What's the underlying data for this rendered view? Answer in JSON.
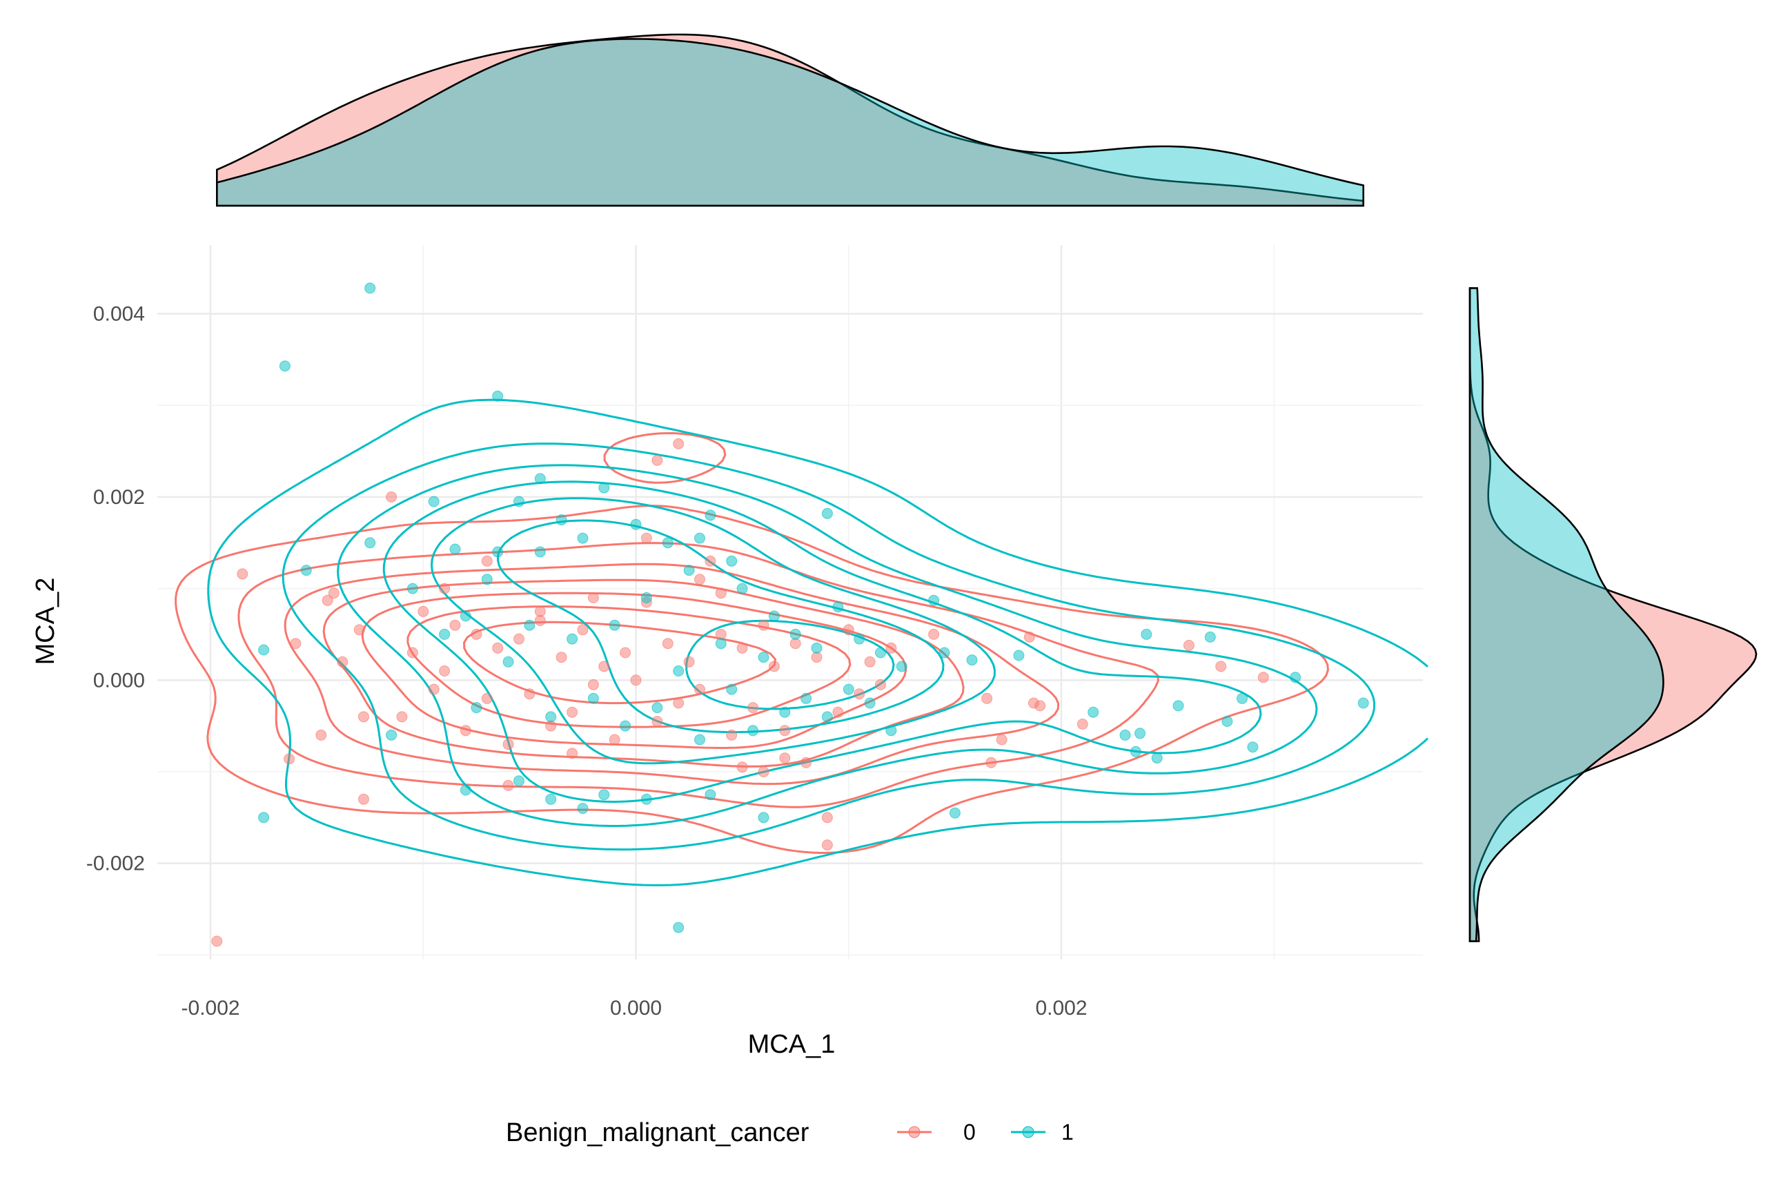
{
  "chart_data": {
    "type": "scatter",
    "xlabel": "MCA_1",
    "ylabel": "MCA_2",
    "xlim": [
      -0.00225,
      0.0037
    ],
    "ylim": [
      -0.00305,
      0.00475
    ],
    "x_ticks": [
      -0.002,
      0.0,
      0.002
    ],
    "x_tick_labels": [
      "-0.002",
      "0.000",
      "0.002"
    ],
    "y_ticks": [
      -0.002,
      0.0,
      0.002,
      0.004
    ],
    "y_tick_labels": [
      "-0.002",
      "0.000",
      "0.002",
      "0.004"
    ],
    "grid": true,
    "legend_position": "bottom",
    "legend_title": "Benign_malignant_cancer",
    "marginal_density": {
      "top": "MCA_1",
      "right": "MCA_2"
    },
    "contours": true,
    "series": [
      {
        "name": "0",
        "color": "#F8766D",
        "x": [
          -0.00197,
          -0.00185,
          -0.00163,
          -0.0016,
          -0.00148,
          -0.00145,
          -0.00142,
          -0.00138,
          -0.0013,
          -0.00128,
          -0.00115,
          -0.0011,
          -0.00105,
          -0.001,
          -0.00095,
          -0.0009,
          -0.00085,
          -0.0008,
          -0.00075,
          -0.0007,
          -0.00065,
          -0.0006,
          -0.00055,
          -0.0005,
          -0.00045,
          -0.0004,
          -0.00035,
          -0.0003,
          -0.00025,
          -0.0002,
          -0.00015,
          -0.0001,
          -5e-05,
          0.0,
          5e-05,
          0.0001,
          0.00015,
          0.0002,
          0.00025,
          0.0003,
          0.00035,
          0.0004,
          0.00045,
          0.0005,
          0.00055,
          0.0006,
          0.00065,
          0.0007,
          0.00075,
          0.0008,
          0.00085,
          0.0009,
          0.00095,
          0.001,
          0.00105,
          0.0011,
          0.00115,
          0.0012,
          0.0014,
          0.00165,
          0.00167,
          0.00172,
          0.00185,
          0.00187,
          0.0019,
          0.0021,
          0.0026,
          0.00275,
          0.00295,
          0.0001,
          0.0002,
          -0.00128,
          0.0009,
          -0.0002,
          0.0003,
          -0.0006,
          0.0005,
          -0.0009,
          0.0007,
          -0.00045,
          5e-05,
          -0.0003,
          0.0004,
          -0.0007,
          0.0006
        ],
        "y": [
          -0.00285,
          0.00116,
          -0.00086,
          0.0004,
          -0.0006,
          0.00087,
          0.00095,
          0.0002,
          0.00055,
          -0.0013,
          0.002,
          -0.0004,
          0.0003,
          0.00075,
          -0.0001,
          0.0001,
          0.0006,
          -0.00055,
          0.0005,
          -0.0002,
          0.00035,
          -0.0007,
          0.00045,
          -0.00015,
          0.00065,
          -0.0005,
          0.00025,
          -0.00035,
          0.00055,
          -5e-05,
          0.00015,
          -0.00065,
          0.0003,
          0.0,
          0.00155,
          -0.00045,
          0.0004,
          -0.00025,
          0.0002,
          -0.0001,
          0.0013,
          0.0005,
          -0.0006,
          0.00035,
          -0.0003,
          0.0006,
          0.00015,
          -0.00055,
          0.0004,
          -0.0009,
          0.00025,
          -0.0018,
          -0.00035,
          0.00055,
          -0.00015,
          0.0002,
          -5e-05,
          0.00035,
          0.0005,
          -0.0002,
          -0.0009,
          -0.00065,
          0.00047,
          -0.00025,
          -0.00028,
          -0.00048,
          0.00038,
          0.00015,
          3e-05,
          0.0024,
          0.00258,
          -0.0004,
          -0.0015,
          0.0009,
          0.0011,
          -0.00115,
          -0.00095,
          0.001,
          -0.00085,
          0.00075,
          0.00085,
          -0.0008,
          0.00095,
          0.0013,
          -0.001
        ]
      },
      {
        "name": "1",
        "color": "#00BFC4",
        "x": [
          -0.00175,
          -0.00175,
          -0.00165,
          -0.00155,
          -0.00125,
          -0.00115,
          -0.00105,
          -0.00095,
          -0.0009,
          -0.00085,
          -0.0008,
          -0.00075,
          -0.0007,
          -0.00065,
          -0.0006,
          -0.00055,
          -0.0005,
          -0.00045,
          -0.0004,
          -0.00035,
          -0.0003,
          -0.00025,
          -0.0002,
          -0.00015,
          -0.0001,
          -5e-05,
          0.0,
          5e-05,
          0.0001,
          0.00015,
          0.0002,
          0.00025,
          0.0003,
          0.00035,
          0.0004,
          0.00045,
          0.0005,
          0.00055,
          0.0006,
          0.00065,
          0.0007,
          0.00075,
          0.0008,
          0.00085,
          0.0009,
          0.00095,
          0.001,
          0.00105,
          0.0011,
          0.00115,
          0.0012,
          0.00125,
          0.0014,
          0.00145,
          0.0015,
          0.00158,
          0.0018,
          0.00215,
          0.0023,
          0.00235,
          0.00237,
          0.0024,
          0.00245,
          0.00255,
          0.0027,
          0.00278,
          0.00285,
          0.0029,
          0.0031,
          0.00342,
          -0.00125,
          -0.00065,
          -0.00045,
          0.0009,
          0.0003,
          -0.0004,
          -0.00025,
          -0.0008,
          -0.00015,
          5e-05,
          0.0002,
          0.0006,
          0.00035,
          -0.00055,
          0.00045
        ],
        "y": [
          0.00033,
          -0.0015,
          0.00343,
          0.0012,
          0.00428,
          -0.0006,
          0.001,
          0.00195,
          0.0005,
          0.00143,
          0.0007,
          -0.0003,
          0.0011,
          0.0031,
          0.0002,
          0.00195,
          0.0006,
          0.0022,
          -0.0004,
          0.00175,
          0.00045,
          0.00155,
          -0.0002,
          0.0021,
          0.0006,
          -0.0005,
          0.0017,
          0.0009,
          -0.0003,
          0.0015,
          0.0001,
          0.0012,
          -0.00065,
          0.0018,
          0.0004,
          -0.0001,
          0.001,
          -0.00055,
          0.00025,
          0.0007,
          -0.00035,
          0.0005,
          -0.0002,
          0.00035,
          -0.0004,
          0.0008,
          -0.0001,
          0.00045,
          -0.00025,
          0.0003,
          -0.00055,
          0.00015,
          0.00087,
          0.0003,
          -0.00145,
          0.00022,
          0.00027,
          -0.00035,
          -0.0006,
          -0.00078,
          -0.00058,
          0.0005,
          -0.00085,
          -0.00028,
          0.00047,
          -0.00045,
          -0.0002,
          -0.00073,
          3e-05,
          -0.00025,
          0.0015,
          0.0014,
          0.0014,
          0.00182,
          0.00155,
          -0.0013,
          -0.0014,
          -0.0012,
          -0.00125,
          -0.0013,
          -0.0027,
          -0.0015,
          -0.00125,
          -0.0011,
          0.0013
        ]
      }
    ]
  }
}
